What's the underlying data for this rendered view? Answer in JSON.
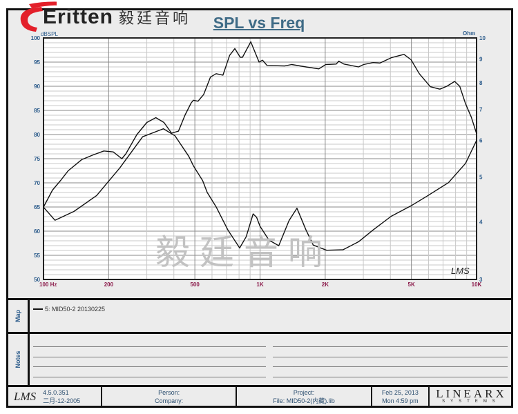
{
  "logo": {
    "brand": "Eritten",
    "brand_cn": "毅廷音响",
    "accent": "#e3202a"
  },
  "watermark": "毅廷音响",
  "title": "SPL vs Freq",
  "chart_data": {
    "type": "line",
    "title": "SPL vs Freq",
    "x_axis": {
      "scale": "log",
      "range": [
        100,
        10000
      ],
      "ticks": [
        100,
        200,
        500,
        1000,
        2000,
        5000,
        10000
      ],
      "tick_labels": [
        "100 Hz",
        "200",
        "500",
        "1K",
        "2K",
        "5K",
        "10K"
      ]
    },
    "y_axis_left": {
      "label": "dBSPL",
      "range": [
        50,
        100
      ],
      "ticks": [
        100,
        95,
        90,
        85,
        80,
        75,
        70,
        65,
        60,
        55,
        50
      ]
    },
    "y_axis_right": {
      "label": "Ohm",
      "scale": "log",
      "range": [
        3,
        10
      ],
      "ticks": [
        10,
        9,
        8,
        7,
        6,
        5,
        4,
        3
      ]
    },
    "grid": true,
    "series": [
      {
        "axis": "left",
        "x": [
          100,
          110,
          120,
          130,
          150,
          170,
          190,
          210,
          230,
          240,
          270,
          300,
          330,
          360,
          390,
          420,
          450,
          480,
          492,
          517,
          549,
          590,
          627,
          674,
          724,
          765,
          810,
          830,
          906,
          990,
          1027,
          1078,
          1300,
          1400,
          1630,
          1870,
          2010,
          2250,
          2310,
          2440,
          2850,
          3010,
          3330,
          3580,
          4030,
          4620,
          4980,
          5440,
          6120,
          6770,
          7290,
          7920,
          8360,
          8890,
          9460,
          10000
        ],
        "y": [
          65,
          68.5,
          70.5,
          72.5,
          74.8,
          75.8,
          76.6,
          76.4,
          75,
          76,
          80,
          82.5,
          83.5,
          82.5,
          80.3,
          80.7,
          84,
          86.5,
          87.1,
          86.9,
          88.3,
          91.9,
          92.6,
          92.3,
          96.4,
          97.8,
          96,
          96,
          99.2,
          95,
          95.4,
          94.3,
          94.2,
          94.5,
          94,
          93.6,
          94.5,
          94.6,
          95.2,
          94.6,
          94,
          94.5,
          94.9,
          94.8,
          95.9,
          96.6,
          95.5,
          92.6,
          89.9,
          89.4,
          90,
          91,
          90,
          86.4,
          83.6,
          80.2
        ]
      },
      {
        "axis": "right",
        "x": [
          100,
          113,
          138,
          176,
          225,
          287,
          358,
          405,
          469,
          492,
          543,
          570,
          628,
          710,
          805,
          863,
          929,
          964,
          1000,
          1100,
          1220,
          1360,
          1480,
          1630,
          1760,
          2030,
          2420,
          2850,
          3330,
          4030,
          4980,
          5970,
          7410,
          8890,
          10000
        ],
        "y": [
          4.3,
          4.03,
          4.21,
          4.56,
          5.23,
          6.11,
          6.36,
          6.14,
          5.54,
          5.29,
          4.91,
          4.63,
          4.3,
          3.84,
          3.51,
          3.71,
          4.16,
          4.09,
          3.91,
          3.65,
          3.55,
          4.02,
          4.28,
          3.84,
          3.56,
          3.47,
          3.48,
          3.62,
          3.84,
          4.11,
          4.33,
          4.56,
          4.86,
          5.35,
          6.0
        ]
      }
    ],
    "watermark_mark": "LMS"
  },
  "colors": {
    "curve": "#111111",
    "left_ticks": "#2a5a8a",
    "x_ticks": "#8b1a4a",
    "grid_major": "#8a8a8a",
    "grid_minor": "#c8c8c8"
  },
  "map": {
    "label": "Map",
    "legend": "5: MID50-2  20130225"
  },
  "notes": {
    "label": "Notes"
  },
  "footer": {
    "lms": "LMS",
    "version": "4.5.0.351",
    "build_date": "二月-12-2005",
    "person": "Person:",
    "company": "Company:",
    "project": "Project:",
    "file": "File: MID50-2(内藏).lib",
    "date": "Feb 25, 2013",
    "time": "Mon  4:59 pm",
    "vendor": "LINEARX",
    "vendor_sub": "SYSTEMS"
  }
}
